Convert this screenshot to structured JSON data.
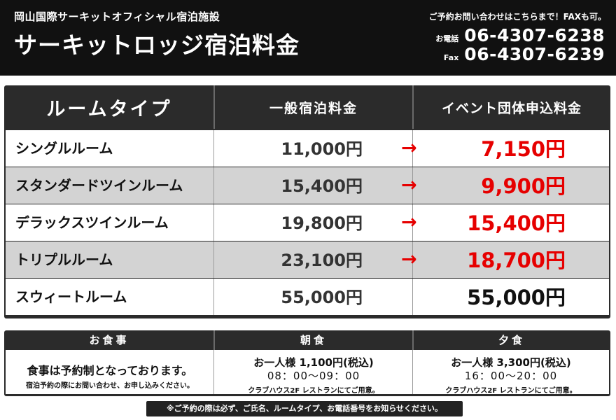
{
  "header": {
    "subtitle": "岡山国際サーキットオフィシャル宿泊施設",
    "title": "サーキットロッジ宿泊料金",
    "contact_note": "ご予約お問い合わせはこちらまで！FAXも可。",
    "tel_label": "お電話",
    "tel_number": "06-4307-6238",
    "fax_label": "Fax",
    "fax_number": "06-4307-6239"
  },
  "price_table": {
    "headers": [
      "ルームタイプ",
      "一般宿泊料金",
      "イベント団体申込料金"
    ],
    "arrow": "→",
    "rows": [
      {
        "room": "シングルルーム",
        "regular": "11,000円",
        "event": "7,150円"
      },
      {
        "room": "スタンダードツインルーム",
        "regular": "15,400円",
        "event": "9,900円"
      },
      {
        "room": "デラックスツインルーム",
        "regular": "19,800円",
        "event": "15,400円"
      },
      {
        "room": "トリプルルーム",
        "regular": "23,100円",
        "event": "18,700円"
      },
      {
        "room": "スウィートルーム",
        "regular": "55,000円",
        "event": "55,000円"
      }
    ],
    "colors": {
      "discount": "#e60000",
      "header_bg": "#2b2b2b",
      "alt_row": "#d3d3d3"
    }
  },
  "meal_table": {
    "headers": [
      "お食事",
      "朝食",
      "夕食"
    ],
    "info_main": "食事は予約制となっております。",
    "info_sub": "宿泊予約の際にお問い合わせ、お申し込みください。",
    "breakfast": {
      "price": "お一人様 1,100円(税込)",
      "time": "08：00〜09：00",
      "place": "クラブハウス2F レストランにてご用意。"
    },
    "dinner": {
      "price": "お一人様 3,300円(税込)",
      "time": "16：00〜20：00",
      "place": "クラブハウス2F レストランにてご用意。"
    }
  },
  "footer_note": "※ご予約の際は必ず、ご氏名、ルームタイプ、お電話番号をお知らせください。"
}
